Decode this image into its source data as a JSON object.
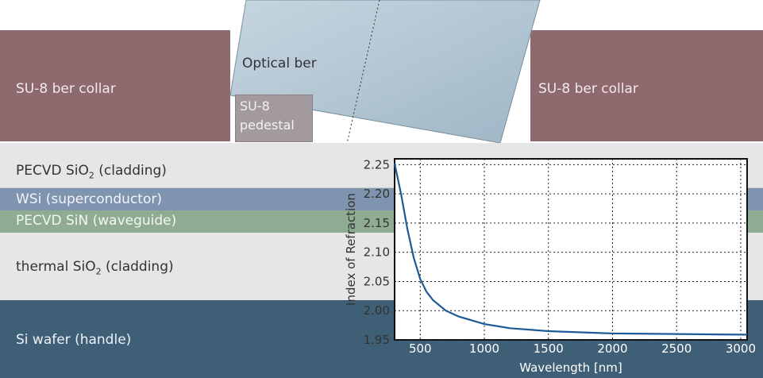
{
  "layers": {
    "collar_left": "SU-8   ber collar",
    "collar_right": "SU-8   ber collar",
    "fiber": "Optical   ber",
    "pedestal_line1": "SU-8",
    "pedestal_line2": "pedestal",
    "pecvd_sio2_a": "PECVD SiO",
    "pecvd_sio2_sub": "2",
    "pecvd_sio2_b": " (cladding)",
    "wsi": "WSi (superconductor)",
    "sin": "PECVD SiN (waveguide)",
    "thermal_a": "thermal SiO",
    "thermal_sub": "2",
    "thermal_b": " (cladding)",
    "wafer": "Si wafer (handle)"
  },
  "colors": {
    "collar": "#8e6a6e",
    "pedestal": "#a39a9f",
    "fiber": "#b9ccd8",
    "cladding": "#e6e6e8",
    "wsi": "#7f94ae",
    "sin": "#8fac92",
    "wafer": "#3f5f77",
    "curve": "#1c5a96"
  },
  "chart_data": {
    "type": "line",
    "xlabel": "Wavelength [nm]",
    "ylabel": "Index of Refraction",
    "xlim": [
      300,
      3050
    ],
    "ylim": [
      1.95,
      2.26
    ],
    "xticks": [
      500,
      1000,
      1500,
      2000,
      2500,
      3000
    ],
    "yticks": [
      1.95,
      2.0,
      2.05,
      2.1,
      2.15,
      2.2,
      2.25
    ],
    "ytick_labels": [
      "1.95",
      "2.00",
      "2.05",
      "2.10",
      "2.15",
      "2.20",
      "2.25"
    ],
    "grid": true,
    "series": [
      {
        "x": [
          300,
          350,
          400,
          450,
          500,
          550,
          600,
          700,
          800,
          1000,
          1200,
          1500,
          2000,
          2500,
          3000,
          3050
        ],
        "values": [
          2.252,
          2.2,
          2.14,
          2.09,
          2.054,
          2.032,
          2.018,
          2.0,
          1.99,
          1.977,
          1.97,
          1.965,
          1.961,
          1.96,
          1.959,
          1.959
        ]
      }
    ]
  }
}
